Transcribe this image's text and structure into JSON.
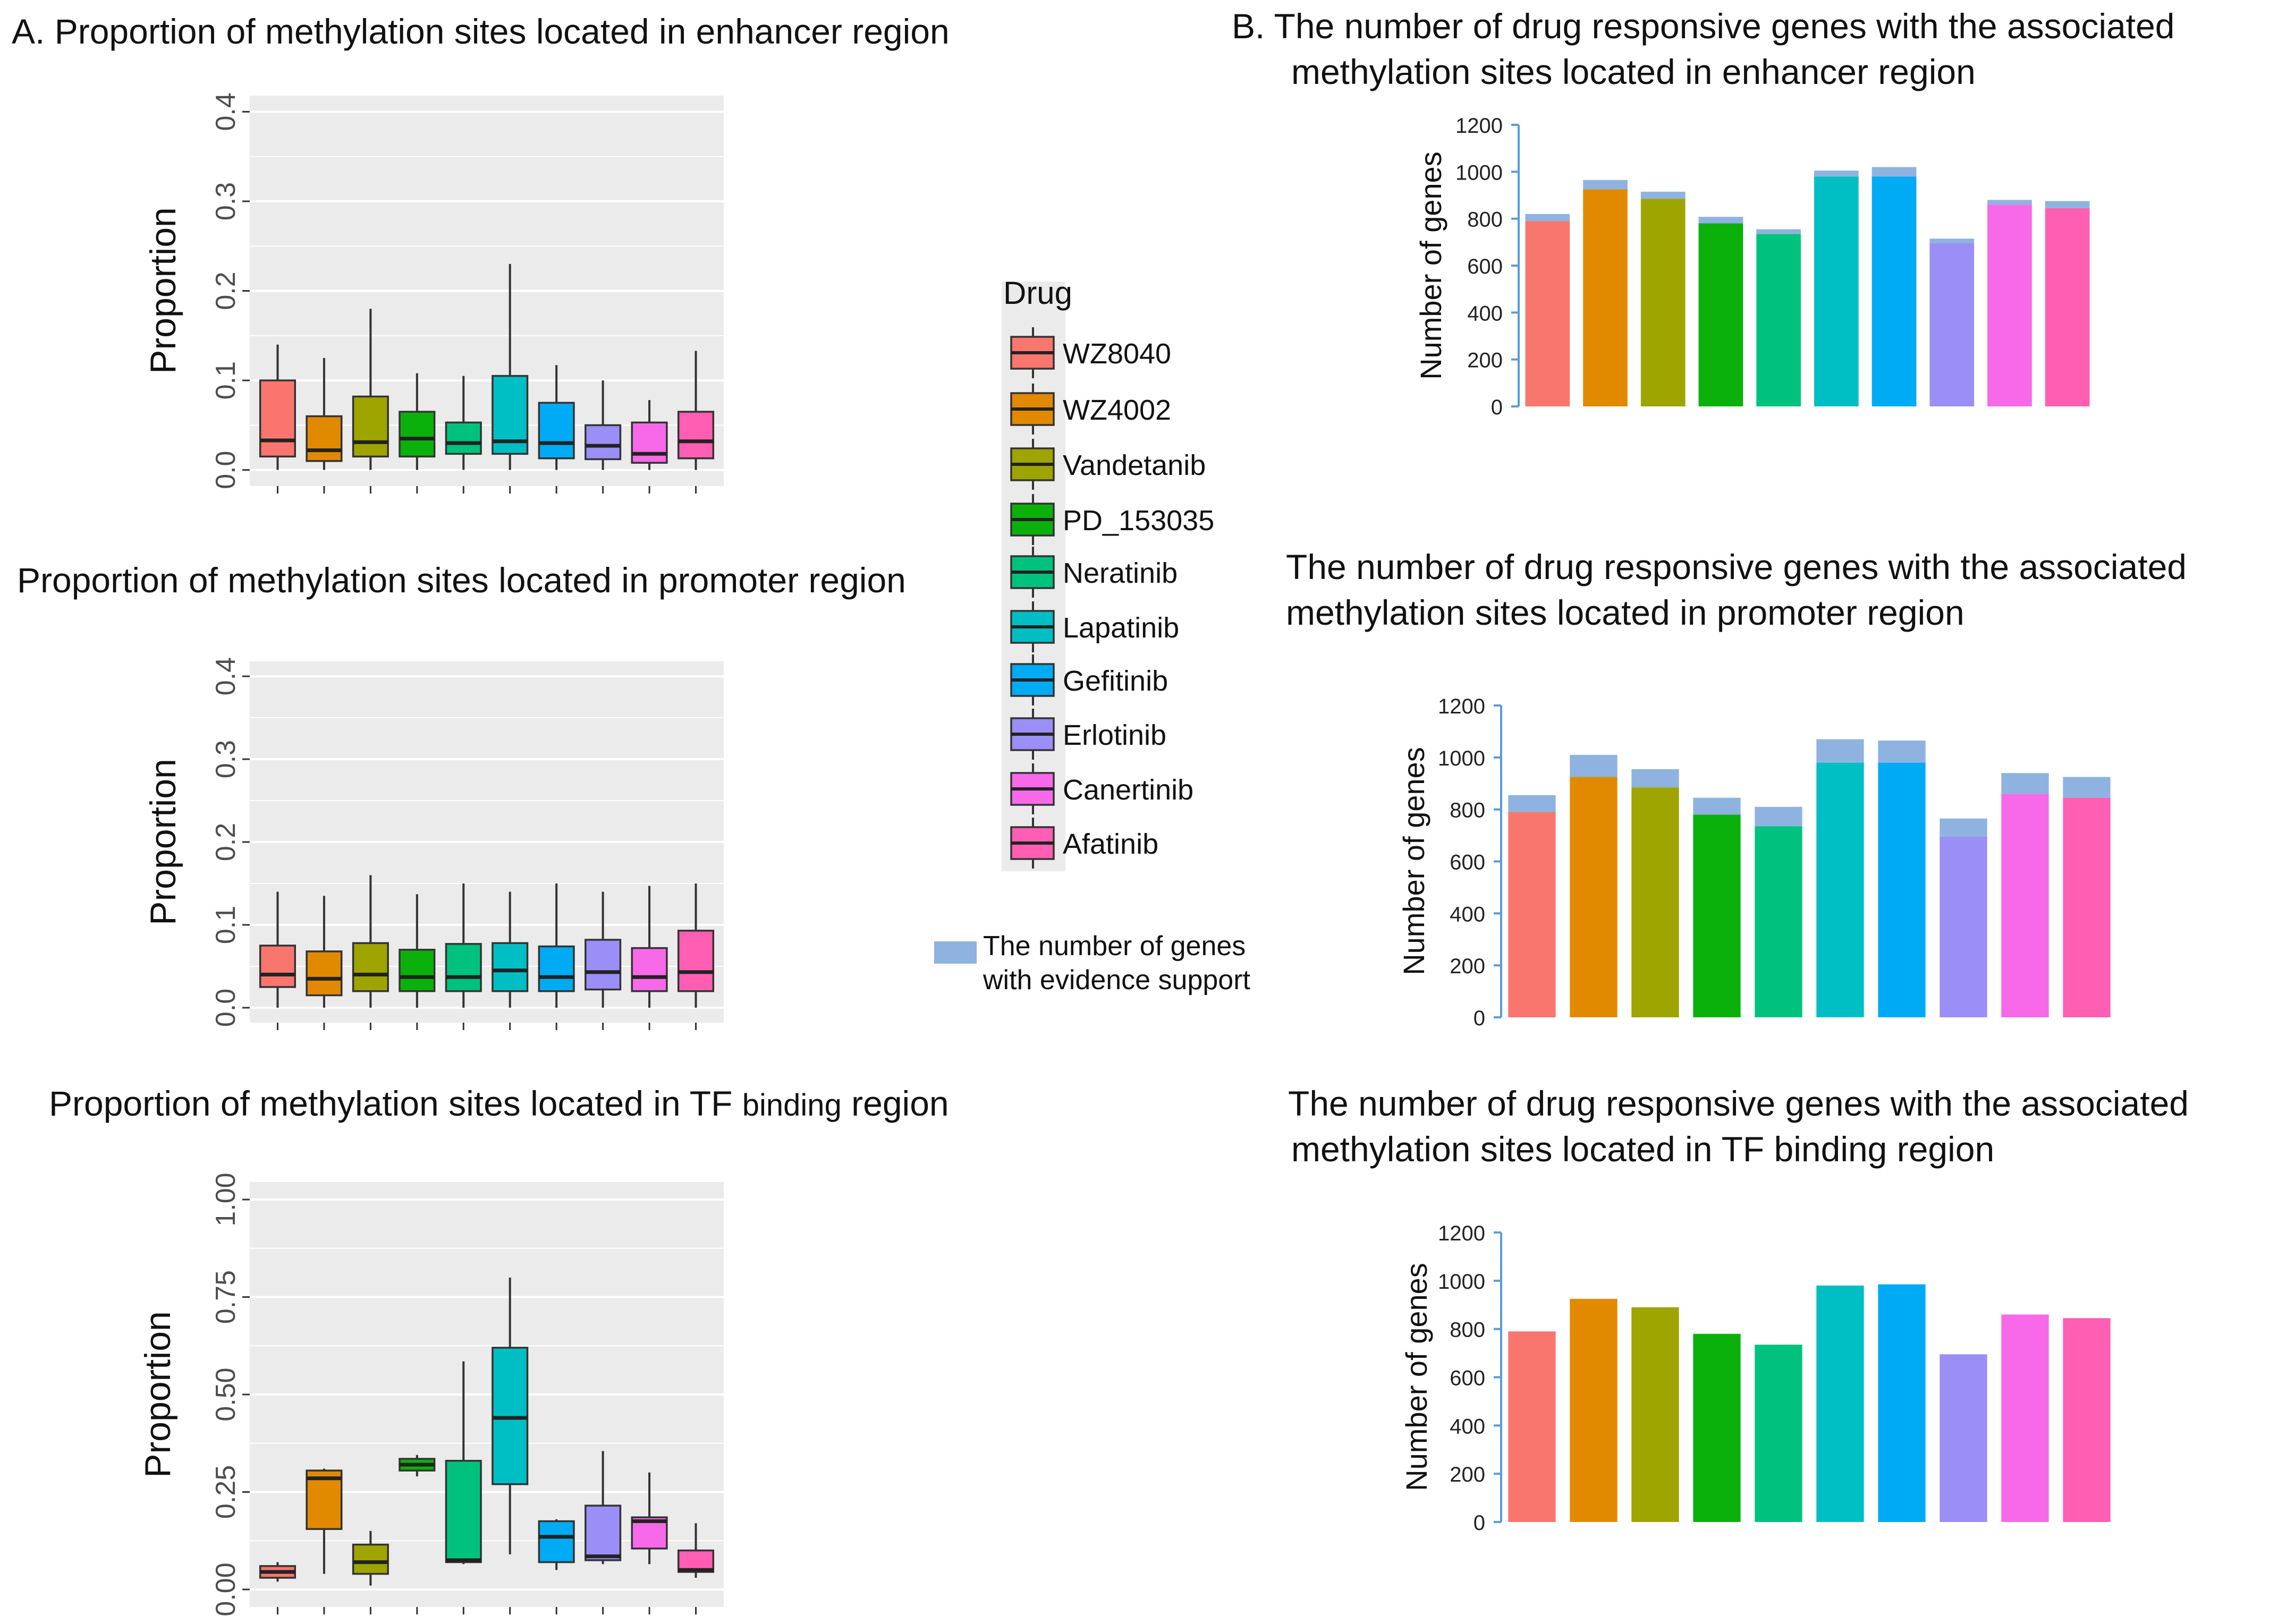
{
  "panel_a": {
    "label": "A.",
    "titles": [
      "Proportion of methylation sites located in enhancer region",
      "Proportion of methylation sites located in promoter region",
      "Proportion of methylation sites located in TF binding  region"
    ],
    "tf_title_parts": [
      "Proportion of methylation sites located in TF ",
      "binding",
      "  region"
    ]
  },
  "panel_b": {
    "label": "B.",
    "titles": [
      [
        "The number of drug responsive genes with the associated",
        "methylation sites located in enhancer region"
      ],
      [
        "The number of drug responsive genes with the associated",
        "methylation sites  located in promoter region"
      ],
      [
        "The number of drug responsive genes with the associated",
        "methylation sites located in TF binding region"
      ]
    ]
  },
  "legend": {
    "title": "Drug",
    "drugs": [
      "WZ8040",
      "WZ4002",
      "Vandetanib",
      "PD_153035",
      "Neratinib",
      "Lapatinib",
      "Gefitinib",
      "Erlotinib",
      "Canertinib",
      "Afatinib"
    ],
    "colors": [
      "#F8766D",
      "#E18A00",
      "#9EA400",
      "#0BB10B",
      "#00C27F",
      "#00BFC4",
      "#00ABF5",
      "#9B8EF6",
      "#F769E9",
      "#FF5EB2"
    ],
    "evidence_label": [
      "The number of genes",
      "with evidence support"
    ],
    "evidence_color": "#8FB3E0"
  },
  "chart_data": [
    {
      "type": "box",
      "title": "Proportion of methylation sites located in enhancer region",
      "ylabel": "Proportion",
      "ylim": [
        0,
        0.4
      ],
      "yticks": [
        0,
        0.1,
        0.2,
        0.3,
        0.4
      ],
      "ytick_labels": [
        "0.0",
        "0.1",
        "0.2",
        "0.3",
        "0.4"
      ],
      "categories": [
        "WZ8040",
        "WZ4002",
        "Vandetanib",
        "PD_153035",
        "Neratinib",
        "Lapatinib",
        "Gefitinib",
        "Erlotinib",
        "Canertinib",
        "Afatinib"
      ],
      "boxes": [
        {
          "whisker_low": 0.0,
          "q1": 0.015,
          "median": 0.033,
          "q3": 0.1,
          "whisker_high": 0.14
        },
        {
          "whisker_low": 0.0,
          "q1": 0.01,
          "median": 0.022,
          "q3": 0.06,
          "whisker_high": 0.125
        },
        {
          "whisker_low": 0.0,
          "q1": 0.015,
          "median": 0.031,
          "q3": 0.082,
          "whisker_high": 0.18
        },
        {
          "whisker_low": 0.0,
          "q1": 0.015,
          "median": 0.035,
          "q3": 0.065,
          "whisker_high": 0.108
        },
        {
          "whisker_low": 0.0,
          "q1": 0.018,
          "median": 0.03,
          "q3": 0.053,
          "whisker_high": 0.105
        },
        {
          "whisker_low": 0.0,
          "q1": 0.018,
          "median": 0.032,
          "q3": 0.105,
          "whisker_high": 0.23
        },
        {
          "whisker_low": 0.0,
          "q1": 0.013,
          "median": 0.03,
          "q3": 0.075,
          "whisker_high": 0.117
        },
        {
          "whisker_low": 0.0,
          "q1": 0.012,
          "median": 0.027,
          "q3": 0.05,
          "whisker_high": 0.1
        },
        {
          "whisker_low": 0.0,
          "q1": 0.008,
          "median": 0.018,
          "q3": 0.053,
          "whisker_high": 0.078
        },
        {
          "whisker_low": 0.0,
          "q1": 0.013,
          "median": 0.032,
          "q3": 0.065,
          "whisker_high": 0.133
        }
      ]
    },
    {
      "type": "box",
      "title": "Proportion of methylation sites located in promoter region",
      "ylabel": "Proportion",
      "ylim": [
        0,
        0.4
      ],
      "yticks": [
        0,
        0.1,
        0.2,
        0.3,
        0.4
      ],
      "ytick_labels": [
        "0.0",
        "0.1",
        "0.2",
        "0.3",
        "0.4"
      ],
      "categories": [
        "WZ8040",
        "WZ4002",
        "Vandetanib",
        "PD_153035",
        "Neratinib",
        "Lapatinib",
        "Gefitinib",
        "Erlotinib",
        "Canertinib",
        "Afatinib"
      ],
      "boxes": [
        {
          "whisker_low": 0.0,
          "q1": 0.025,
          "median": 0.04,
          "q3": 0.075,
          "whisker_high": 0.14
        },
        {
          "whisker_low": 0.0,
          "q1": 0.015,
          "median": 0.035,
          "q3": 0.068,
          "whisker_high": 0.135
        },
        {
          "whisker_low": 0.0,
          "q1": 0.02,
          "median": 0.04,
          "q3": 0.078,
          "whisker_high": 0.16
        },
        {
          "whisker_low": 0.0,
          "q1": 0.02,
          "median": 0.037,
          "q3": 0.07,
          "whisker_high": 0.137
        },
        {
          "whisker_low": 0.0,
          "q1": 0.02,
          "median": 0.037,
          "q3": 0.077,
          "whisker_high": 0.15
        },
        {
          "whisker_low": 0.0,
          "q1": 0.02,
          "median": 0.045,
          "q3": 0.078,
          "whisker_high": 0.14
        },
        {
          "whisker_low": 0.0,
          "q1": 0.02,
          "median": 0.037,
          "q3": 0.074,
          "whisker_high": 0.15
        },
        {
          "whisker_low": 0.0,
          "q1": 0.022,
          "median": 0.043,
          "q3": 0.082,
          "whisker_high": 0.14
        },
        {
          "whisker_low": 0.0,
          "q1": 0.02,
          "median": 0.037,
          "q3": 0.072,
          "whisker_high": 0.147
        },
        {
          "whisker_low": 0.0,
          "q1": 0.02,
          "median": 0.043,
          "q3": 0.093,
          "whisker_high": 0.15
        }
      ]
    },
    {
      "type": "box",
      "title": "Proportion of methylation sites located in TF binding  region",
      "ylabel": "Proportion",
      "ylim": [
        0,
        1.0
      ],
      "yticks": [
        0,
        0.25,
        0.5,
        0.75,
        1.0
      ],
      "ytick_labels": [
        "0.00",
        "0.25",
        "0.50",
        "0.75",
        "1.00"
      ],
      "categories": [
        "WZ8040",
        "WZ4002",
        "Vandetanib",
        "PD_153035",
        "Neratinib",
        "Lapatinib",
        "Gefitinib",
        "Erlotinib",
        "Canertinib",
        "Afatinib"
      ],
      "boxes": [
        {
          "whisker_low": 0.02,
          "q1": 0.03,
          "median": 0.045,
          "q3": 0.06,
          "whisker_high": 0.07
        },
        {
          "whisker_low": 0.04,
          "q1": 0.155,
          "median": 0.285,
          "q3": 0.305,
          "whisker_high": 0.31
        },
        {
          "whisker_low": 0.01,
          "q1": 0.04,
          "median": 0.07,
          "q3": 0.115,
          "whisker_high": 0.15
        },
        {
          "whisker_low": 0.29,
          "q1": 0.305,
          "median": 0.32,
          "q3": 0.335,
          "whisker_high": 0.345
        },
        {
          "whisker_low": 0.065,
          "q1": 0.07,
          "median": 0.075,
          "q3": 0.33,
          "whisker_high": 0.585
        },
        {
          "whisker_low": 0.09,
          "q1": 0.27,
          "median": 0.44,
          "q3": 0.62,
          "whisker_high": 0.8
        },
        {
          "whisker_low": 0.05,
          "q1": 0.07,
          "median": 0.135,
          "q3": 0.175,
          "whisker_high": 0.18
        },
        {
          "whisker_low": 0.065,
          "q1": 0.075,
          "median": 0.085,
          "q3": 0.215,
          "whisker_high": 0.355
        },
        {
          "whisker_low": 0.065,
          "q1": 0.105,
          "median": 0.175,
          "q3": 0.185,
          "whisker_high": 0.3
        },
        {
          "whisker_low": 0.03,
          "q1": 0.045,
          "median": 0.05,
          "q3": 0.1,
          "whisker_high": 0.17
        }
      ]
    },
    {
      "type": "bar",
      "stacked": true,
      "title": "The number of drug responsive genes with the associated methylation sites located in enhancer region",
      "ylabel": "Number of genes",
      "ylim": [
        0,
        1200
      ],
      "yticks": [
        0,
        200,
        400,
        600,
        800,
        1000,
        1200
      ],
      "categories": [
        "WZ8040",
        "WZ4002",
        "Vandetanib",
        "PD_153035",
        "Neratinib",
        "Lapatinib",
        "Gefitinib",
        "Erlotinib",
        "Canertinib",
        "Afatinib"
      ],
      "series": [
        {
          "name": "Number of genes",
          "values": [
            790,
            925,
            885,
            780,
            735,
            980,
            980,
            695,
            860,
            845
          ]
        },
        {
          "name": "The number of genes with evidence support",
          "values": [
            30,
            40,
            30,
            28,
            20,
            25,
            40,
            20,
            20,
            30
          ]
        }
      ]
    },
    {
      "type": "bar",
      "stacked": true,
      "title": "The number of drug responsive genes with the associated methylation sites  located in promoter region",
      "ylabel": "Number of genes",
      "ylim": [
        0,
        1200
      ],
      "yticks": [
        0,
        200,
        400,
        600,
        800,
        1000,
        1200
      ],
      "categories": [
        "WZ8040",
        "WZ4002",
        "Vandetanib",
        "PD_153035",
        "Neratinib",
        "Lapatinib",
        "Gefitinib",
        "Erlotinib",
        "Canertinib",
        "Afatinib"
      ],
      "series": [
        {
          "name": "Number of genes",
          "values": [
            790,
            925,
            885,
            780,
            735,
            980,
            980,
            695,
            860,
            845
          ]
        },
        {
          "name": "The number of genes with evidence support",
          "values": [
            65,
            85,
            70,
            65,
            75,
            90,
            85,
            70,
            80,
            80
          ]
        }
      ]
    },
    {
      "type": "bar",
      "stacked": false,
      "title": "The number of drug responsive genes with the associated methylation sites located in TF binding region",
      "ylabel": "Number of genes",
      "ylim": [
        0,
        1200
      ],
      "yticks": [
        0,
        200,
        400,
        600,
        800,
        1000,
        1200
      ],
      "categories": [
        "WZ8040",
        "WZ4002",
        "Vandetanib",
        "PD_153035",
        "Neratinib",
        "Lapatinib",
        "Gefitinib",
        "Erlotinib",
        "Canertinib",
        "Afatinib"
      ],
      "series": [
        {
          "name": "Number of genes",
          "values": [
            790,
            925,
            890,
            780,
            735,
            980,
            985,
            695,
            860,
            845
          ]
        }
      ]
    }
  ]
}
